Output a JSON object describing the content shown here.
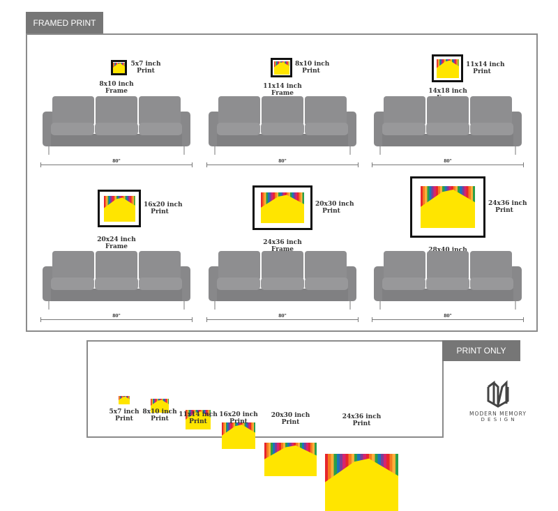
{
  "framed_section": {
    "tab_label": "FRAMED PRINT",
    "dimension_label": "80\"",
    "items": [
      {
        "print": "5x7 inch\nPrint",
        "frame": "8x10 inch\nFrame"
      },
      {
        "print": "8x10 inch\nPrint",
        "frame": "11x14 inch\nFrame"
      },
      {
        "print": "11x14 inch\nPrint",
        "frame": "14x18 inch\nFrame"
      },
      {
        "print": "16x20 inch\nPrint",
        "frame": "20x24 inch\nFrame"
      },
      {
        "print": "20x30 inch\nPrint",
        "frame": "24x36 inch\nFrame"
      },
      {
        "print": "24x36 inch\nPrint",
        "frame": "28x40 inch\nFrame"
      }
    ]
  },
  "print_section": {
    "tab_label": "PRINT ONLY",
    "items": [
      "5x7 inch\nPrint",
      "8x10 inch\nPrint",
      "11x14 inch\nPrint",
      "16x20 inch\nPrint",
      "20x30 inch\nPrint",
      "24x36 inch\nPrint"
    ]
  },
  "logo": {
    "line1": "MODERN MEMORY",
    "line2": "D E S I G N"
  }
}
